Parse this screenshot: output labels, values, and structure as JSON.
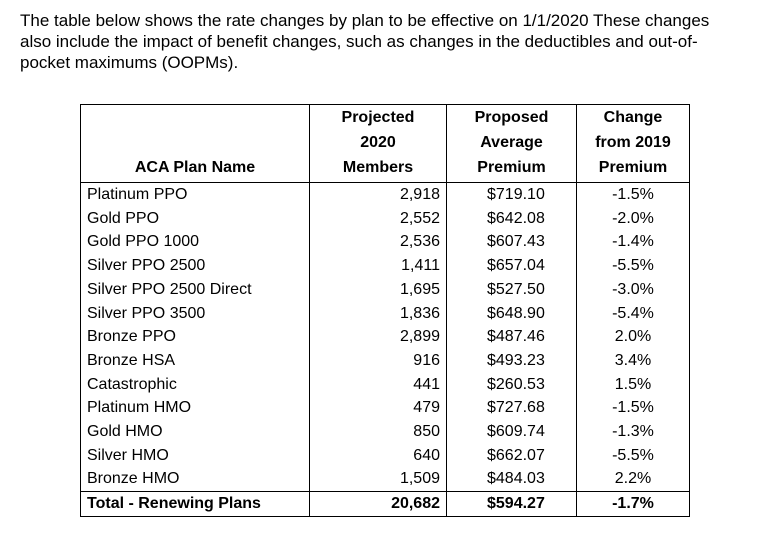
{
  "intro": [
    "The table below shows the rate changes by plan to be effective on 1/1/2020  These changes",
    "also include the impact of benefit changes, such as changes in the deductibles and out-of-",
    "pocket maximums (OOPMs)."
  ],
  "table": {
    "headers": [
      [
        "ACA Plan Name"
      ],
      [
        "Projected",
        "2020",
        "Members"
      ],
      [
        "Proposed",
        "Average",
        "Premium"
      ],
      [
        "Change",
        "from 2019",
        "Premium"
      ]
    ],
    "rows": [
      [
        "Platinum PPO",
        "2,918",
        "$719.10",
        "-1.5%"
      ],
      [
        "Gold PPO",
        "2,552",
        "$642.08",
        "-2.0%"
      ],
      [
        "Gold PPO 1000",
        "2,536",
        "$607.43",
        "-1.4%"
      ],
      [
        "Silver PPO 2500",
        "1,411",
        "$657.04",
        "-5.5%"
      ],
      [
        "Silver PPO 2500 Direct",
        "1,695",
        "$527.50",
        "-3.0%"
      ],
      [
        "Silver PPO 3500",
        "1,836",
        "$648.90",
        "-5.4%"
      ],
      [
        "Bronze PPO",
        "2,899",
        "$487.46",
        "2.0%"
      ],
      [
        "Bronze HSA",
        "916",
        "$493.23",
        "3.4%"
      ],
      [
        "Catastrophic",
        "441",
        "$260.53",
        "1.5%"
      ],
      [
        "Platinum HMO",
        "479",
        "$727.68",
        "-1.5%"
      ],
      [
        "Gold HMO",
        "850",
        "$609.74",
        "-1.3%"
      ],
      [
        "Silver HMO",
        "640",
        "$662.07",
        "-5.5%"
      ],
      [
        "Bronze HMO",
        "1,509",
        "$484.03",
        "2.2%"
      ]
    ],
    "total": [
      "Total - Renewing Plans",
      "20,682",
      "$594.27",
      "-1.7%"
    ]
  }
}
